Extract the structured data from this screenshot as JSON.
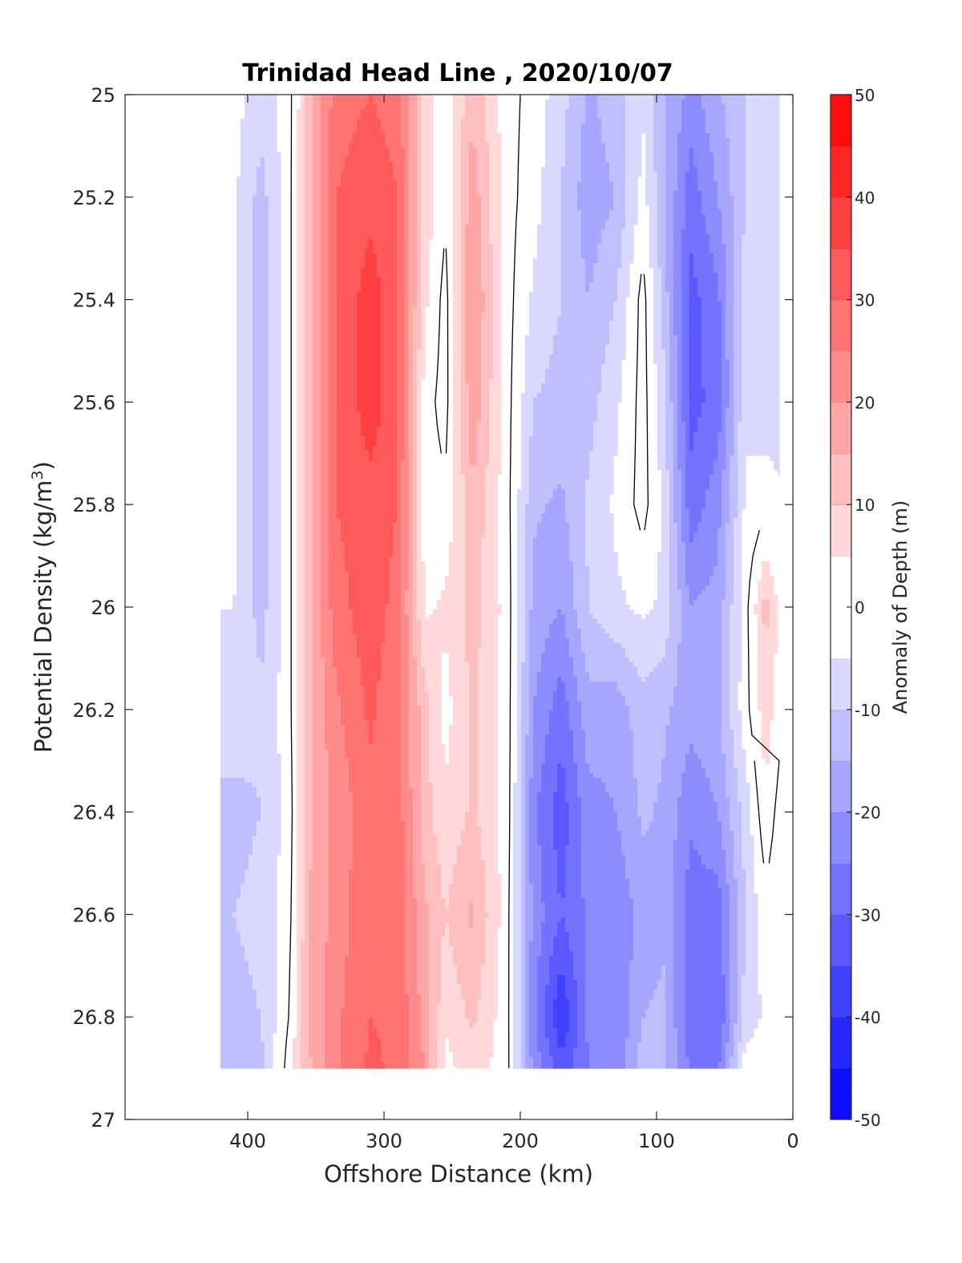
{
  "chart_data": {
    "type": "heatmap",
    "subtype": "filled-contour",
    "title": "Trinidad Head Line , 2020/10/07",
    "xlabel": "Offshore Distance (km)",
    "ylabel_main": "Potential Density (kg/m",
    "ylabel_sup": "3",
    "ylabel_close": ")",
    "colorbar_label": "Anomaly of Depth (m)",
    "xlim": [
      490,
      0
    ],
    "ylim": [
      25,
      27
    ],
    "y_reversed": true,
    "x_reversed": true,
    "x_ticks": [
      400,
      300,
      200,
      100,
      0
    ],
    "x_tick_labels": [
      "400",
      "300",
      "200",
      "100",
      "0"
    ],
    "y_ticks": [
      25,
      25.2,
      25.4,
      25.6,
      25.8,
      26,
      26.2,
      26.4,
      26.6,
      26.8,
      27
    ],
    "y_tick_labels": [
      "25",
      "25.2",
      "25.4",
      "25.6",
      "25.8",
      "26",
      "26.2",
      "26.4",
      "26.6",
      "26.8",
      "27"
    ],
    "colorbar_range": [
      -50,
      50
    ],
    "colorbar_levels": [
      -50,
      -45,
      -40,
      -35,
      -30,
      -25,
      -20,
      -15,
      -10,
      -5,
      0,
      5,
      10,
      15,
      20,
      25,
      30,
      35,
      40,
      45,
      50
    ],
    "colorbar_ticks": [
      50,
      40,
      30,
      20,
      10,
      0,
      -10,
      -20,
      -30,
      -40,
      -50
    ],
    "colorbar_tick_labels": [
      "50",
      "40",
      "30",
      "20",
      "10",
      "0",
      "-10",
      "-20",
      "-30",
      "-40",
      "-50"
    ],
    "colormap": "blue-white-red",
    "colormap_endpoints": {
      "low": "#0000ff",
      "mid": "#ffffff",
      "high": "#ff0000"
    },
    "data_extent_x": [
      420,
      10
    ],
    "data_extent_y": [
      25,
      26.9
    ],
    "density_rows": [
      25,
      25.2,
      25.4,
      25.6,
      25.8,
      26,
      26.2,
      26.4,
      26.6,
      26.8,
      26.9
    ],
    "profiles": [
      {
        "distance_km": 410,
        "anomaly_m": [
          -3,
          -4,
          -4,
          -4,
          -4,
          -5,
          -6,
          -12,
          -10,
          -12,
          -12
        ]
      },
      {
        "distance_km": 390,
        "anomaly_m": [
          -8,
          -12,
          -13,
          -13,
          -13,
          -12,
          -9,
          -10,
          -8,
          -10,
          -11
        ]
      },
      {
        "distance_km": 370,
        "anomaly_m": [
          -2,
          -2,
          -2,
          -2,
          -2,
          -2,
          -2,
          -3,
          -2,
          0,
          2
        ]
      },
      {
        "distance_km": 355,
        "anomaly_m": [
          12,
          14,
          14,
          14,
          14,
          14,
          14,
          14,
          15,
          16,
          14
        ]
      },
      {
        "distance_km": 335,
        "anomaly_m": [
          28,
          30,
          30,
          30,
          30,
          28,
          24,
          22,
          22,
          24,
          24
        ]
      },
      {
        "distance_km": 310,
        "anomaly_m": [
          30,
          33,
          38,
          38,
          33,
          33,
          31,
          28,
          30,
          30,
          31
        ]
      },
      {
        "distance_km": 290,
        "anomaly_m": [
          28,
          30,
          31,
          31,
          30,
          28,
          26,
          28,
          28,
          29,
          29
        ]
      },
      {
        "distance_km": 270,
        "anomaly_m": [
          8,
          8,
          6,
          2,
          2,
          4,
          12,
          12,
          16,
          18,
          20
        ]
      },
      {
        "distance_km": 255,
        "anomaly_m": [
          1,
          1,
          -2,
          -2,
          1,
          6,
          3,
          6,
          10,
          6,
          3
        ]
      },
      {
        "distance_km": 235,
        "anomaly_m": [
          14,
          18,
          21,
          19,
          14,
          12,
          11,
          11,
          16,
          11,
          8
        ]
      },
      {
        "distance_km": 210,
        "anomaly_m": [
          2,
          2,
          2,
          2,
          2,
          3,
          3,
          3,
          2,
          2,
          2
        ]
      },
      {
        "distance_km": 190,
        "anomaly_m": [
          -2,
          -3,
          -6,
          -10,
          -14,
          -17,
          -20,
          -24,
          -22,
          -24,
          -22
        ]
      },
      {
        "distance_km": 170,
        "anomaly_m": [
          -8,
          -10,
          -10,
          -12,
          -16,
          -20,
          -28,
          -33,
          -30,
          -40,
          -33
        ]
      },
      {
        "distance_km": 150,
        "anomaly_m": [
          -16,
          -18,
          -15,
          -12,
          -9,
          -10,
          -17,
          -22,
          -24,
          -24,
          -25
        ]
      },
      {
        "distance_km": 130,
        "anomaly_m": [
          -12,
          -15,
          -10,
          -6,
          -4,
          -6,
          -18,
          -20,
          -24,
          -25,
          -24
        ]
      },
      {
        "distance_km": 110,
        "anomaly_m": [
          -6,
          -3,
          2,
          2,
          2,
          -4,
          -12,
          -14,
          -18,
          -15,
          -12
        ]
      },
      {
        "distance_km": 95,
        "anomaly_m": [
          -14,
          -14,
          -12,
          -8,
          -6,
          -6,
          -14,
          -16,
          -16,
          -14,
          -14
        ]
      },
      {
        "distance_km": 75,
        "anomaly_m": [
          -22,
          -28,
          -32,
          -32,
          -28,
          -20,
          -18,
          -24,
          -28,
          -28,
          -26
        ]
      },
      {
        "distance_km": 55,
        "anomaly_m": [
          -16,
          -20,
          -26,
          -28,
          -22,
          -18,
          -16,
          -20,
          -28,
          -30,
          -26
        ]
      },
      {
        "distance_km": 35,
        "anomaly_m": [
          -10,
          -10,
          -8,
          -6,
          -4,
          -2,
          -2,
          -8,
          -10,
          -8,
          -2
        ]
      },
      {
        "distance_km": 20,
        "anomaly_m": [
          -8,
          -8,
          -8,
          -8,
          -2,
          12,
          8,
          4,
          -2,
          -4,
          -2
        ]
      },
      {
        "distance_km": 10,
        "anomaly_m": [
          -8,
          -8,
          -8,
          -8,
          -4,
          4,
          2,
          -2,
          -4,
          -4,
          -2
        ]
      }
    ],
    "zero_contour": "black",
    "grid": false,
    "box": true,
    "colorbar_position": "right"
  }
}
